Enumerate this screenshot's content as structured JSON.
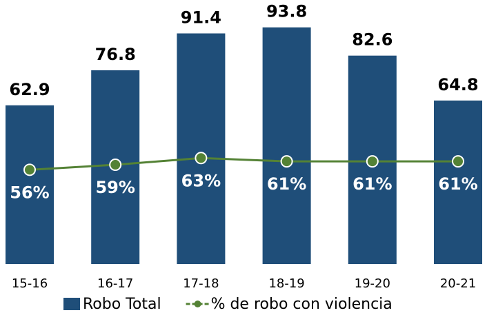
{
  "chart_data": {
    "type": "bar",
    "categories": [
      "15-16",
      "16-17",
      "17-18",
      "18-19",
      "19-20",
      "20-21"
    ],
    "ylim": [
      0,
      100
    ],
    "y2lim": [
      0,
      150
    ],
    "series": [
      {
        "name": "Robo Total",
        "type": "bar",
        "color": "#1f4e79",
        "values": [
          62.9,
          76.8,
          91.4,
          93.8,
          82.6,
          64.8
        ]
      },
      {
        "name": "% de robo con violencia",
        "type": "line",
        "axis": "y2",
        "color": "#548235",
        "values": [
          56,
          59,
          63,
          61,
          61,
          61
        ],
        "value_labels": [
          "56%",
          "59%",
          "63%",
          "61%",
          "61%",
          "61%"
        ]
      }
    ]
  }
}
